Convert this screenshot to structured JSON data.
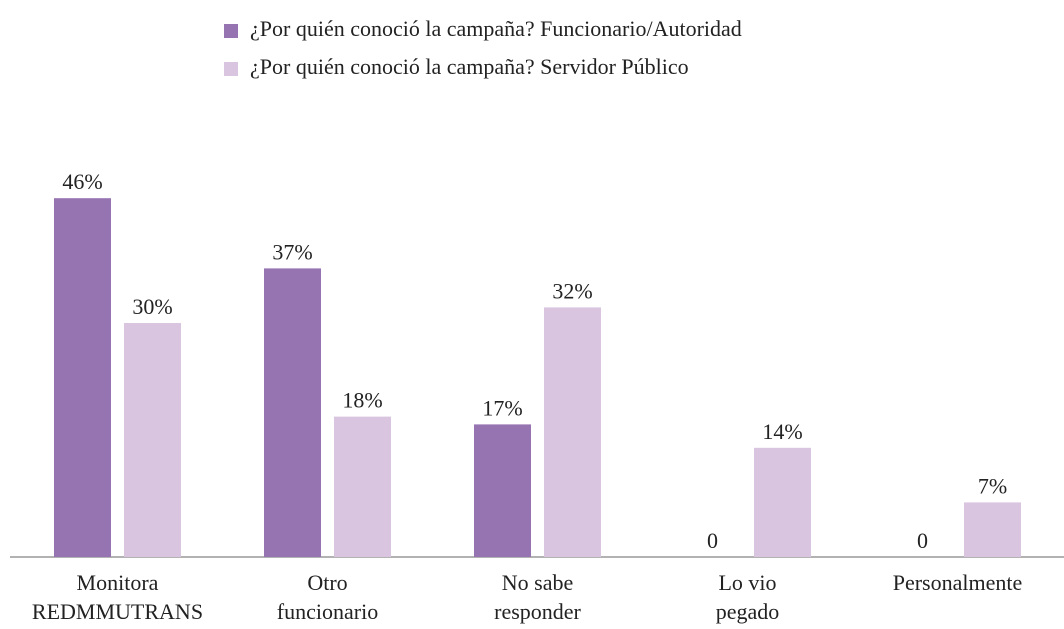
{
  "chart_data": {
    "type": "bar",
    "categories": [
      "Monitora\nREDMMUTRANS",
      "Otro\nfuncionario",
      "No sabe\nresponder",
      "Lo vio\npegado",
      "Personalmente"
    ],
    "series": [
      {
        "name": "¿Por quién conoció la campaña? Funcionario/Autoridad",
        "color": "#9673b1",
        "values": [
          46,
          37,
          17,
          0,
          0
        ],
        "value_labels": [
          "46%",
          "37%",
          "17%",
          "0",
          "0"
        ]
      },
      {
        "name": "¿Por quién conoció la campaña? Servidor Público",
        "color": "#dac5e1",
        "values": [
          30,
          18,
          32,
          14,
          7
        ],
        "value_labels": [
          "30%",
          "18%",
          "32%",
          "14%",
          "7%"
        ]
      }
    ]
  }
}
